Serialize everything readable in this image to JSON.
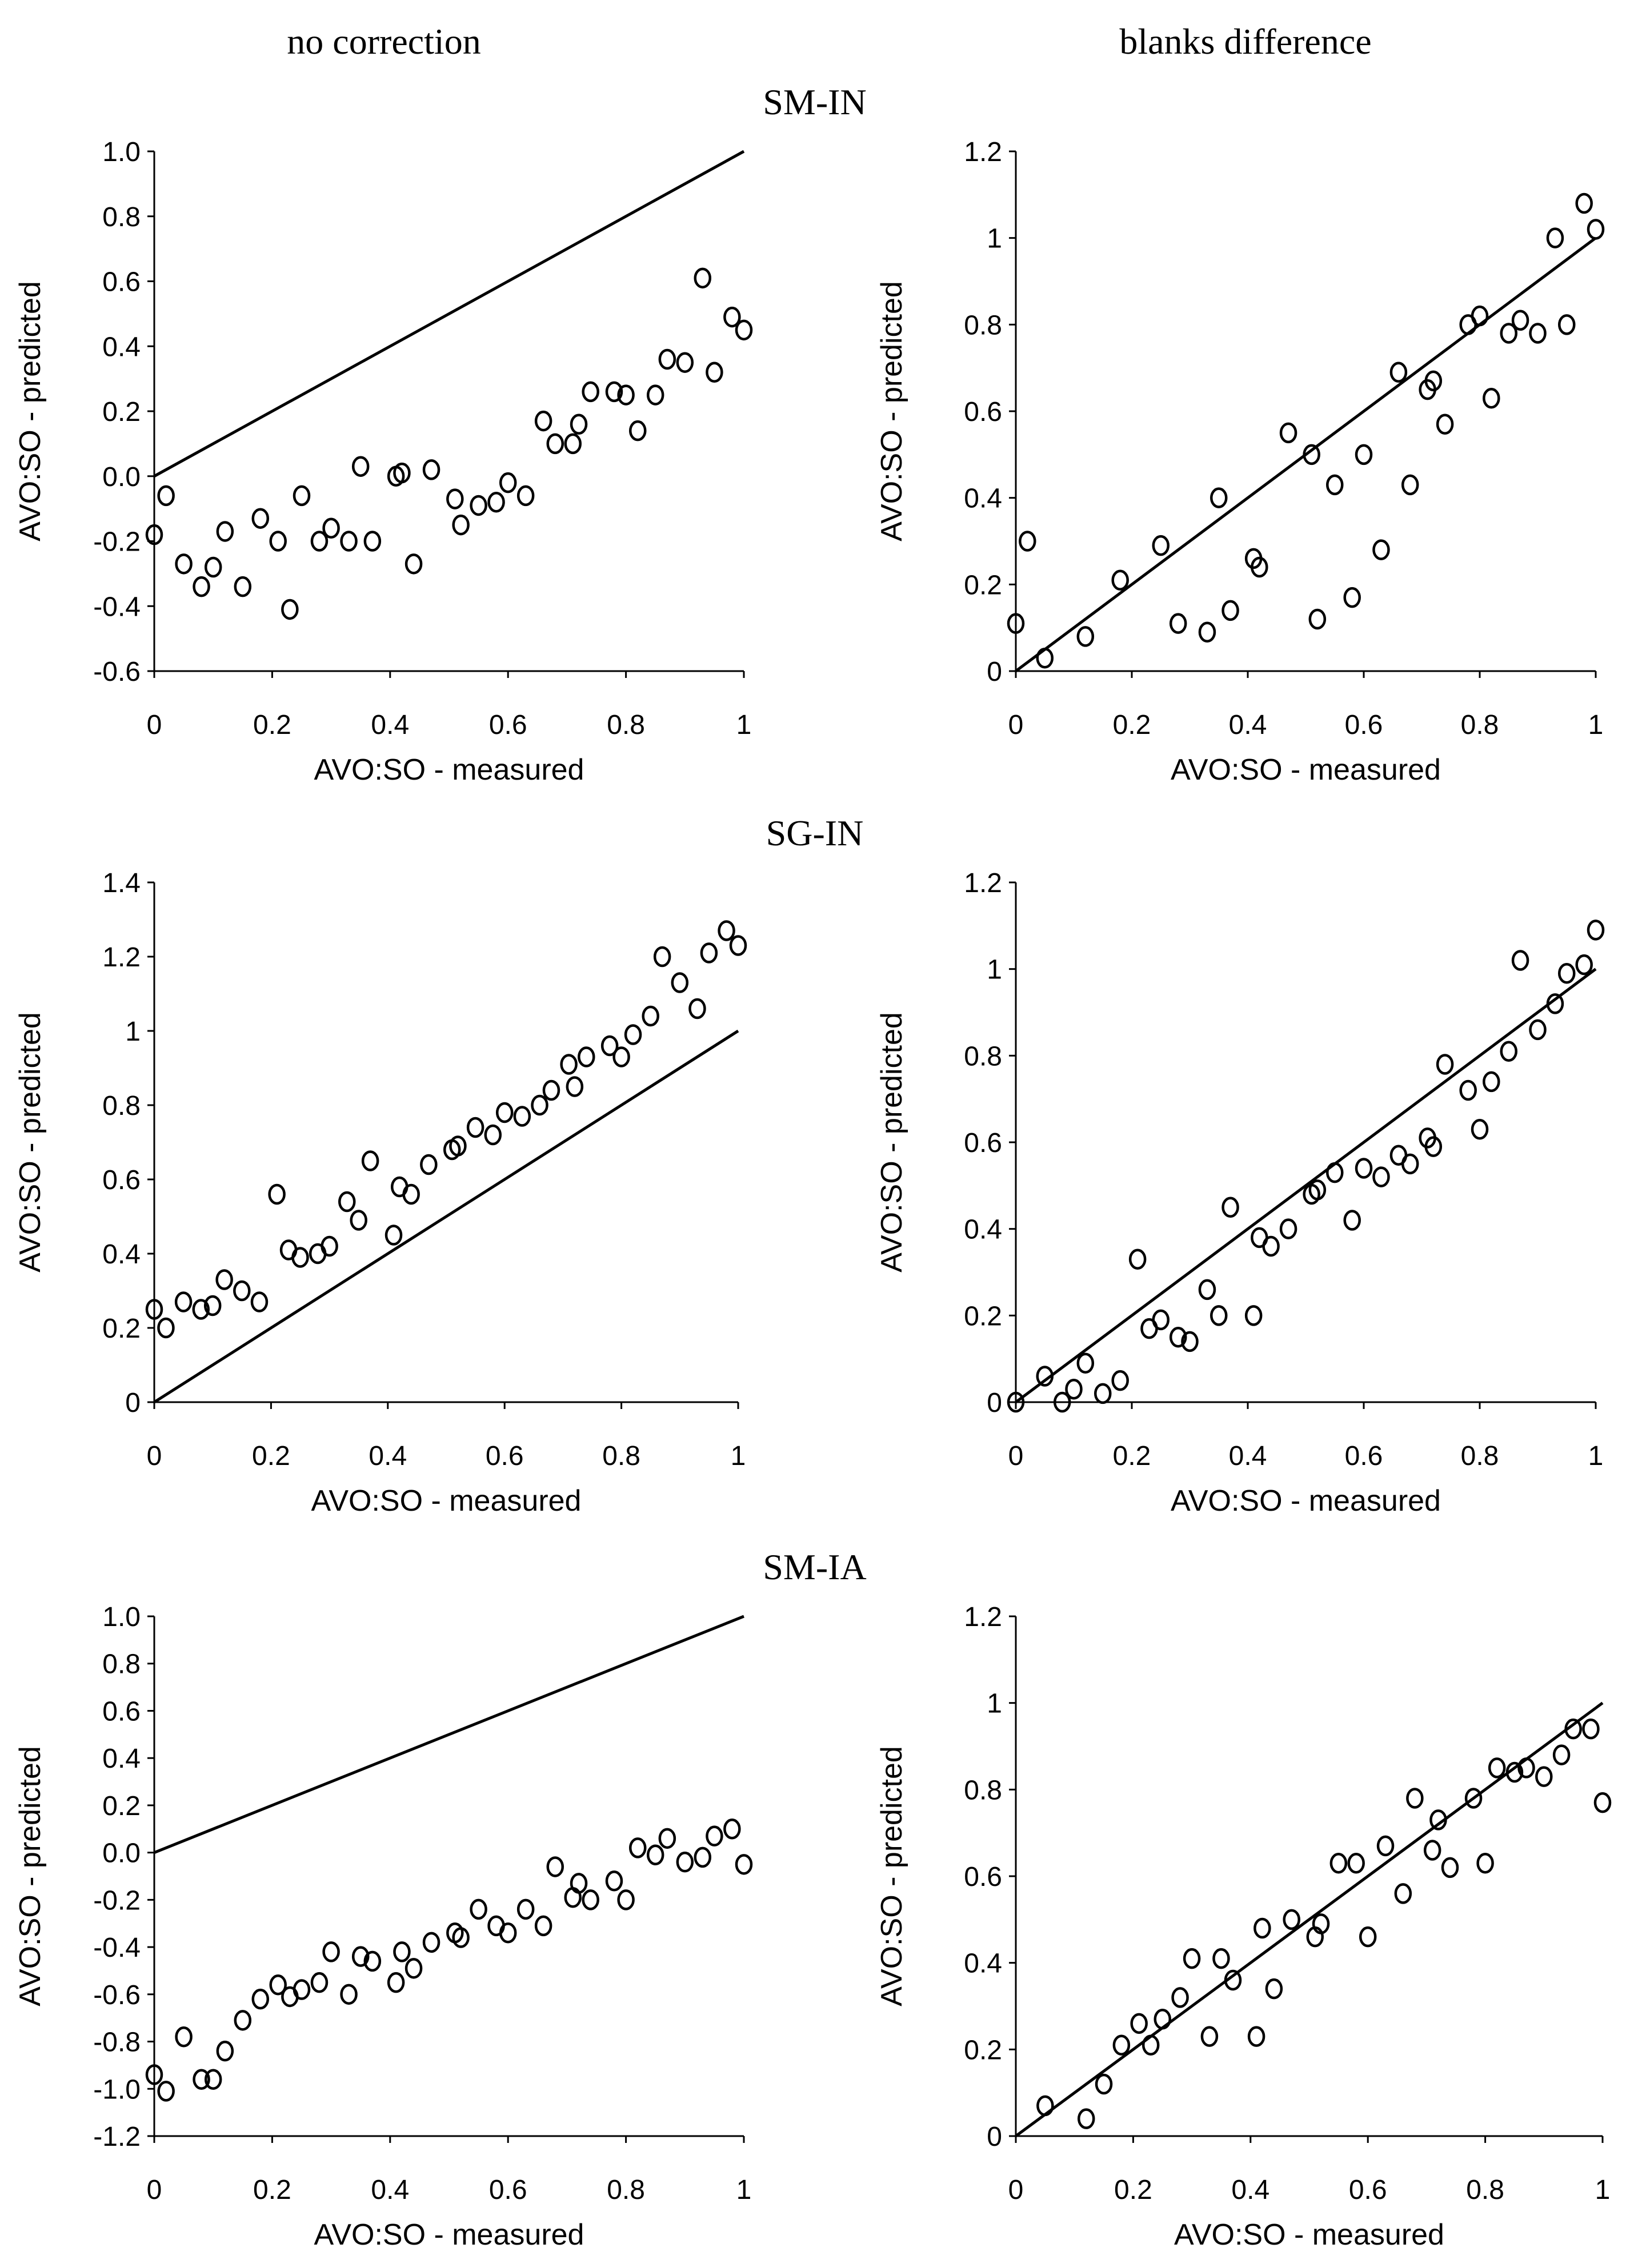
{
  "figure": {
    "column_titles": [
      "no correction",
      "blanks difference"
    ],
    "row_titles": [
      "SM-IN",
      "SG-IN",
      "SM-IA"
    ]
  },
  "chart_data": [
    {
      "id": "sm-in-no-correction",
      "type": "scatter",
      "title": "",
      "xlabel": "AVO:SO - measured",
      "ylabel": "AVO:SO - predicted",
      "xlim": [
        0,
        1
      ],
      "ylim": [
        -0.6,
        1.0
      ],
      "xticks": [
        0,
        0.2,
        0.4,
        0.6,
        0.8,
        1
      ],
      "xtick_labels": [
        "0",
        "0.2",
        "0.4",
        "0.6",
        "0.8",
        "1"
      ],
      "yticks": [
        -0.6,
        -0.4,
        -0.2,
        0.0,
        0.2,
        0.4,
        0.6,
        0.8,
        1.0
      ],
      "ytick_labels": [
        "-0.6",
        "-0.4",
        "-0.2",
        "0.0",
        "0.2",
        "0.4",
        "0.6",
        "0.8",
        "1.0"
      ],
      "reference_line": {
        "x": [
          0,
          1
        ],
        "y": [
          0,
          1
        ]
      },
      "x": [
        0.0,
        0.02,
        0.05,
        0.08,
        0.1,
        0.12,
        0.15,
        0.18,
        0.21,
        0.23,
        0.25,
        0.28,
        0.3,
        0.33,
        0.35,
        0.37,
        0.41,
        0.42,
        0.44,
        0.47,
        0.51,
        0.52,
        0.55,
        0.58,
        0.6,
        0.63,
        0.66,
        0.68,
        0.71,
        0.72,
        0.74,
        0.78,
        0.8,
        0.82,
        0.85,
        0.87,
        0.9,
        0.93,
        0.95,
        0.98,
        1.0
      ],
      "y": [
        -0.18,
        -0.06,
        -0.27,
        -0.34,
        -0.28,
        -0.17,
        -0.34,
        -0.13,
        -0.2,
        -0.41,
        -0.06,
        -0.2,
        -0.16,
        -0.2,
        0.03,
        -0.2,
        0.0,
        0.01,
        -0.27,
        0.02,
        -0.07,
        -0.15,
        -0.09,
        -0.08,
        -0.02,
        -0.06,
        0.17,
        0.1,
        0.1,
        0.16,
        0.26,
        0.26,
        0.25,
        0.14,
        0.25,
        0.36,
        0.35,
        0.61,
        0.32,
        0.49,
        0.45
      ]
    },
    {
      "id": "sm-in-blanks-difference",
      "type": "scatter",
      "title": "",
      "xlabel": "AVO:SO - measured",
      "ylabel": "AVO:SO - predicted",
      "xlim": [
        0,
        1
      ],
      "ylim": [
        0,
        1.2
      ],
      "xticks": [
        0,
        0.2,
        0.4,
        0.6,
        0.8,
        1
      ],
      "xtick_labels": [
        "0",
        "0.2",
        "0.4",
        "0.6",
        "0.8",
        "1"
      ],
      "yticks": [
        0,
        0.2,
        0.4,
        0.6,
        0.8,
        1,
        1.2
      ],
      "ytick_labels": [
        "0",
        "0.2",
        "0.4",
        "0.6",
        "0.8",
        "1",
        "1.2"
      ],
      "reference_line": {
        "x": [
          0,
          1
        ],
        "y": [
          0,
          1
        ]
      },
      "x": [
        0.0,
        0.02,
        0.05,
        0.12,
        0.18,
        0.25,
        0.28,
        0.33,
        0.35,
        0.37,
        0.41,
        0.42,
        0.47,
        0.51,
        0.52,
        0.55,
        0.58,
        0.6,
        0.63,
        0.66,
        0.68,
        0.71,
        0.72,
        0.74,
        0.78,
        0.8,
        0.82,
        0.85,
        0.87,
        0.9,
        0.93,
        0.95,
        0.98,
        1.0
      ],
      "y": [
        0.11,
        0.3,
        0.03,
        0.08,
        0.21,
        0.29,
        0.11,
        0.09,
        0.4,
        0.14,
        0.26,
        0.24,
        0.55,
        0.5,
        0.12,
        0.43,
        0.17,
        0.5,
        0.28,
        0.69,
        0.43,
        0.65,
        0.67,
        0.57,
        0.8,
        0.82,
        0.63,
        0.78,
        0.81,
        0.78,
        1.0,
        0.8,
        1.08,
        1.02
      ]
    },
    {
      "id": "sg-in-no-correction",
      "type": "scatter",
      "title": "",
      "xlabel": "AVO:SO - measured",
      "ylabel": "AVO:SO - predicted",
      "xlim": [
        0,
        1
      ],
      "ylim": [
        0,
        1.4
      ],
      "xticks": [
        0,
        0.2,
        0.4,
        0.6,
        0.8,
        1
      ],
      "xtick_labels": [
        "0",
        "0.2",
        "0.4",
        "0.6",
        "0.8",
        "1"
      ],
      "yticks": [
        0,
        0.2,
        0.4,
        0.6,
        0.8,
        1,
        1.2,
        1.4
      ],
      "ytick_labels": [
        "0",
        "0.2",
        "0.4",
        "0.6",
        "0.8",
        "1",
        "1.2",
        "1.4"
      ],
      "reference_line": {
        "x": [
          0,
          1
        ],
        "y": [
          0,
          1
        ]
      },
      "x": [
        0.0,
        0.02,
        0.05,
        0.08,
        0.1,
        0.12,
        0.15,
        0.18,
        0.21,
        0.23,
        0.25,
        0.28,
        0.3,
        0.33,
        0.35,
        0.37,
        0.41,
        0.42,
        0.44,
        0.47,
        0.51,
        0.52,
        0.55,
        0.58,
        0.6,
        0.63,
        0.66,
        0.68,
        0.71,
        0.72,
        0.74,
        0.78,
        0.8,
        0.82,
        0.85,
        0.87,
        0.9,
        0.93,
        0.95,
        0.98,
        1.0
      ],
      "y": [
        0.25,
        0.2,
        0.27,
        0.25,
        0.26,
        0.33,
        0.3,
        0.27,
        0.56,
        0.41,
        0.39,
        0.4,
        0.42,
        0.54,
        0.49,
        0.65,
        0.45,
        0.58,
        0.56,
        0.64,
        0.68,
        0.69,
        0.74,
        0.72,
        0.78,
        0.77,
        0.8,
        0.84,
        0.91,
        0.85,
        0.93,
        0.96,
        0.93,
        0.99,
        1.04,
        1.2,
        1.13,
        1.06,
        1.21,
        1.27,
        1.23
      ]
    },
    {
      "id": "sg-in-blanks-difference",
      "type": "scatter",
      "title": "",
      "xlabel": "AVO:SO - measured",
      "ylabel": "AVO:SO - predicted",
      "xlim": [
        0,
        1
      ],
      "ylim": [
        0,
        1.2
      ],
      "xticks": [
        0,
        0.2,
        0.4,
        0.6,
        0.8,
        1
      ],
      "xtick_labels": [
        "0",
        "0.2",
        "0.4",
        "0.6",
        "0.8",
        "1"
      ],
      "yticks": [
        0,
        0.2,
        0.4,
        0.6,
        0.8,
        1,
        1.2
      ],
      "ytick_labels": [
        "0",
        "0.2",
        "0.4",
        "0.6",
        "0.8",
        "1",
        "1.2"
      ],
      "reference_line": {
        "x": [
          0,
          1
        ],
        "y": [
          0,
          1
        ]
      },
      "x": [
        0.0,
        0.05,
        0.08,
        0.1,
        0.12,
        0.15,
        0.18,
        0.21,
        0.23,
        0.25,
        0.28,
        0.3,
        0.33,
        0.35,
        0.37,
        0.41,
        0.42,
        0.44,
        0.47,
        0.51,
        0.52,
        0.55,
        0.58,
        0.6,
        0.63,
        0.66,
        0.68,
        0.71,
        0.72,
        0.74,
        0.78,
        0.8,
        0.82,
        0.85,
        0.87,
        0.9,
        0.93,
        0.95,
        0.98,
        1.0
      ],
      "y": [
        0.0,
        0.06,
        0.0,
        0.03,
        0.09,
        0.02,
        0.05,
        0.33,
        0.17,
        0.19,
        0.15,
        0.14,
        0.26,
        0.2,
        0.45,
        0.2,
        0.38,
        0.36,
        0.4,
        0.48,
        0.49,
        0.53,
        0.42,
        0.54,
        0.52,
        0.57,
        0.55,
        0.61,
        0.59,
        0.78,
        0.72,
        0.63,
        0.74,
        0.81,
        1.02,
        0.86,
        0.92,
        0.99,
        1.01,
        1.09
      ]
    },
    {
      "id": "sm-ia-no-correction",
      "type": "scatter",
      "title": "",
      "xlabel": "AVO:SO - measured",
      "ylabel": "AVO:SO - predicted",
      "xlim": [
        0,
        1
      ],
      "ylim": [
        -1.2,
        1.0
      ],
      "xticks": [
        0,
        0.2,
        0.4,
        0.6,
        0.8,
        1
      ],
      "xtick_labels": [
        "0",
        "0.2",
        "0.4",
        "0.6",
        "0.8",
        "1"
      ],
      "yticks": [
        -1.2,
        -1.0,
        -0.8,
        -0.6,
        -0.4,
        -0.2,
        0.0,
        0.2,
        0.4,
        0.6,
        0.8,
        1.0
      ],
      "ytick_labels": [
        "-1.2",
        "-1.0",
        "-0.8",
        "-0.6",
        "-0.4",
        "-0.2",
        "0.0",
        "0.2",
        "0.4",
        "0.6",
        "0.8",
        "1.0"
      ],
      "reference_line": {
        "x": [
          0,
          1
        ],
        "y": [
          0,
          1
        ]
      },
      "x": [
        0.0,
        0.02,
        0.05,
        0.08,
        0.1,
        0.12,
        0.15,
        0.18,
        0.21,
        0.23,
        0.25,
        0.28,
        0.3,
        0.33,
        0.35,
        0.37,
        0.41,
        0.42,
        0.44,
        0.47,
        0.51,
        0.52,
        0.55,
        0.58,
        0.6,
        0.63,
        0.66,
        0.68,
        0.71,
        0.72,
        0.74,
        0.78,
        0.8,
        0.82,
        0.85,
        0.87,
        0.9,
        0.93,
        0.95,
        0.98,
        1.0
      ],
      "y": [
        -0.94,
        -1.01,
        -0.78,
        -0.96,
        -0.96,
        -0.84,
        -0.71,
        -0.62,
        -0.56,
        -0.61,
        -0.58,
        -0.55,
        -0.42,
        -0.6,
        -0.44,
        -0.46,
        -0.55,
        -0.42,
        -0.49,
        -0.38,
        -0.34,
        -0.36,
        -0.24,
        -0.31,
        -0.34,
        -0.24,
        -0.31,
        -0.06,
        -0.19,
        -0.13,
        -0.2,
        -0.12,
        -0.2,
        0.02,
        -0.01,
        0.06,
        -0.04,
        -0.02,
        0.07,
        0.1,
        -0.05
      ]
    },
    {
      "id": "sm-ia-blanks-difference",
      "type": "scatter",
      "title": "",
      "xlabel": "AVO:SO - measured",
      "ylabel": "AVO:SO - predicted",
      "xlim": [
        0,
        1
      ],
      "ylim": [
        0,
        1.2
      ],
      "xticks": [
        0,
        0.2,
        0.4,
        0.6,
        0.8,
        1
      ],
      "xtick_labels": [
        "0",
        "0.2",
        "0.4",
        "0.6",
        "0.8",
        "1"
      ],
      "yticks": [
        0,
        0.2,
        0.4,
        0.6,
        0.8,
        1,
        1.2
      ],
      "ytick_labels": [
        "0",
        "0.2",
        "0.4",
        "0.6",
        "0.8",
        "1",
        "1.2"
      ],
      "reference_line": {
        "x": [
          0,
          1
        ],
        "y": [
          0,
          1
        ]
      },
      "x": [
        0.05,
        0.12,
        0.15,
        0.18,
        0.21,
        0.23,
        0.25,
        0.28,
        0.3,
        0.33,
        0.35,
        0.37,
        0.41,
        0.42,
        0.44,
        0.47,
        0.51,
        0.52,
        0.55,
        0.58,
        0.6,
        0.63,
        0.66,
        0.68,
        0.71,
        0.72,
        0.74,
        0.78,
        0.8,
        0.82,
        0.85,
        0.87,
        0.9,
        0.93,
        0.95,
        0.98,
        1.0
      ],
      "y": [
        0.07,
        0.04,
        0.12,
        0.21,
        0.26,
        0.21,
        0.27,
        0.32,
        0.41,
        0.23,
        0.41,
        0.36,
        0.23,
        0.48,
        0.34,
        0.5,
        0.46,
        0.49,
        0.63,
        0.63,
        0.46,
        0.67,
        0.56,
        0.78,
        0.66,
        0.73,
        0.62,
        0.78,
        0.63,
        0.85,
        0.84,
        0.85,
        0.83,
        0.88,
        0.94,
        0.94,
        0.77
      ]
    }
  ]
}
